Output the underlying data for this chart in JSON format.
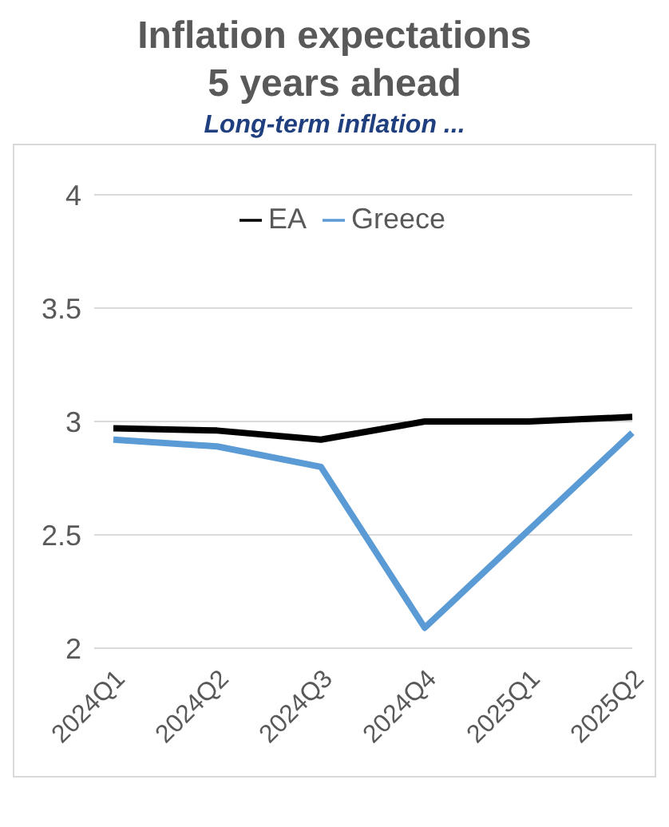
{
  "chart_data": {
    "type": "line",
    "title": "Inflation expectations 5 years ahead",
    "subtitle": "Long-term inflation ...",
    "categories": [
      "2024Q1",
      "2024Q2",
      "2024Q3",
      "2024Q4",
      "2025Q1",
      "2025Q2"
    ],
    "series": [
      {
        "name": "EA",
        "color": "#000000",
        "values": [
          2.97,
          2.96,
          2.92,
          3.0,
          3.0,
          3.02
        ]
      },
      {
        "name": "Greece",
        "color": "#5b9bd5",
        "values": [
          2.92,
          2.89,
          2.8,
          2.09,
          2.52,
          2.95
        ]
      }
    ],
    "ylim": [
      2,
      4
    ],
    "yticks": [
      2,
      2.5,
      3,
      3.5,
      4
    ],
    "grid": "y",
    "legend": "top",
    "marker": "none",
    "line_style": "solid"
  }
}
